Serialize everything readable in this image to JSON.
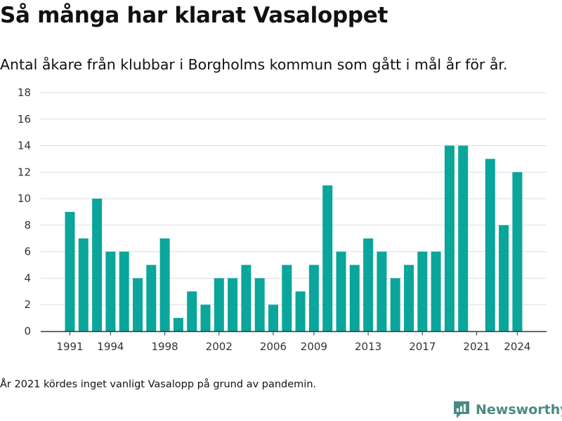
{
  "title": "Så många har klarat Vasaloppet",
  "subtitle": "Antal åkare från klubbar i Borgholms kommun som gått i mål år för år.",
  "footnote": "År 2021 kördes inget vanligt Vasalopp på grund av pandemin.",
  "brand": {
    "name": "Newsworthy",
    "icon": "newsworthy-logo-icon",
    "color": "#4a8a84"
  },
  "colors": {
    "bar": "#0aa59b",
    "grid": "#dedede",
    "axis": "#333333",
    "tick_text": "#333333"
  },
  "chart_data": {
    "type": "bar",
    "categories": [
      "1991",
      "1992",
      "1993",
      "1994",
      "1995",
      "1996",
      "1997",
      "1998",
      "1999",
      "2000",
      "2001",
      "2002",
      "2003",
      "2004",
      "2005",
      "2006",
      "2007",
      "2008",
      "2009",
      "2010",
      "2011",
      "2012",
      "2013",
      "2014",
      "2015",
      "2016",
      "2017",
      "2018",
      "2019",
      "2020",
      "2021",
      "2022",
      "2023",
      "2024"
    ],
    "values": [
      9,
      7,
      10,
      6,
      6,
      4,
      5,
      7,
      1,
      3,
      2,
      4,
      4,
      5,
      4,
      2,
      5,
      3,
      5,
      11,
      6,
      5,
      7,
      6,
      4,
      5,
      6,
      6,
      14,
      14,
      0,
      13,
      8,
      12
    ],
    "x_tick_labels": [
      "1991",
      "1994",
      "1998",
      "2002",
      "2006",
      "2009",
      "2013",
      "2017",
      "2021",
      "2024"
    ],
    "y_ticks": [
      "0",
      "2",
      "4",
      "6",
      "8",
      "10",
      "12",
      "14",
      "16",
      "18"
    ],
    "ylim": [
      0,
      18
    ],
    "xlabel": "",
    "ylabel": "",
    "grid": true,
    "legend": "none"
  }
}
